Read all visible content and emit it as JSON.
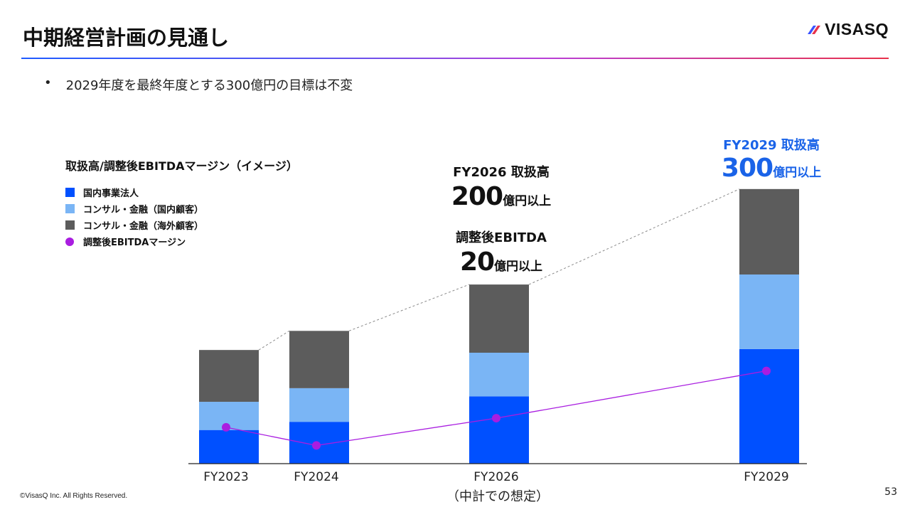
{
  "header": {
    "title": "中期経営計画の見通し",
    "logo_text": "VISASQ",
    "bullet": "2029年度を最終年度とする300億円の目標は不変"
  },
  "legend": {
    "title": "取扱高/調整後EBITDAマージン（イメージ）",
    "items": [
      {
        "label": "国内事業法人",
        "color": "#0050ff"
      },
      {
        "label": "コンサル・金融（国内顧客）",
        "color": "#7ab5f5"
      },
      {
        "label": "コンサル・金融（海外顧客）",
        "color": "#5c5c5c"
      },
      {
        "label": "調整後EBITDAマージン",
        "color": "#a91de0"
      }
    ]
  },
  "annotations": {
    "fy2026_label": "FY2026 取扱高",
    "fy2026_value": "200",
    "fy2026_unit": "億円以上",
    "ebitda_label": "調整後EBITDA",
    "ebitda_value": "20",
    "ebitda_unit": "億円以上",
    "fy2029_label": "FY2029 取扱高",
    "fy2029_value": "300",
    "fy2029_unit": "億円以上"
  },
  "chart_data": {
    "type": "bar",
    "stacked": true,
    "categories": [
      "FY2023",
      "FY2024",
      "FY2026",
      "FY2029"
    ],
    "category_note": {
      "FY2026": "（中計での想定）"
    },
    "series": [
      {
        "name": "国内事業法人",
        "values": [
          37,
          46,
          74,
          126
        ],
        "color": "#0050ff"
      },
      {
        "name": "コンサル・金融（国内顧客）",
        "values": [
          31,
          37,
          48,
          82
        ],
        "color": "#7ab5f5"
      },
      {
        "name": "コンサル・金融（海外顧客）",
        "values": [
          57,
          63,
          75,
          94
        ],
        "color": "#5c5c5c"
      }
    ],
    "line_series": {
      "name": "調整後EBITDAマージン",
      "values": [
        40,
        20,
        50,
        102
      ],
      "color": "#a91de0"
    },
    "ylim": [
      0,
      305
    ],
    "grid": false,
    "legend_position": "top-left"
  },
  "footer": {
    "copyright": "©VisasQ Inc. All Rights Reserved.",
    "page_number": "53"
  }
}
